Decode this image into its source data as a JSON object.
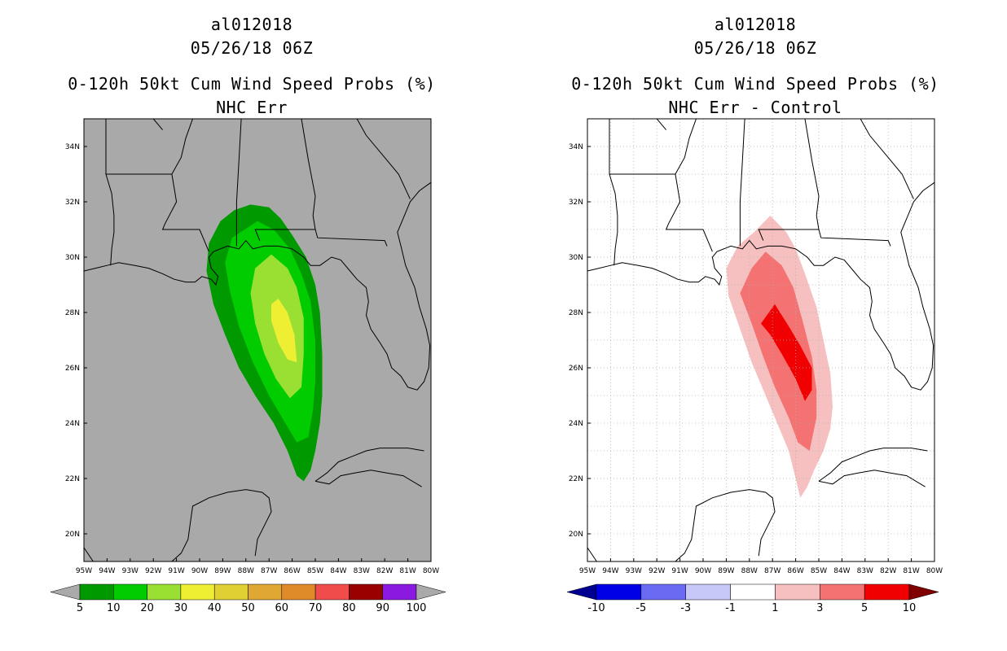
{
  "left_panel": {
    "storm_id": "al012018",
    "datetime": "05/26/18 06Z",
    "product": "0-120h 50kt Cum Wind Speed Probs (%)",
    "subtitle": "NHC Err",
    "background_color": "#a9a9a9",
    "colorbar": {
      "labels": [
        "5",
        "10",
        "20",
        "30",
        "40",
        "50",
        "60",
        "70",
        "80",
        "90",
        "100"
      ],
      "colors": [
        "#009900",
        "#00cc00",
        "#99e033",
        "#eeee33",
        "#e0d033",
        "#e0a833",
        "#e08b2a",
        "#f04c4c",
        "#990000",
        "#8a1ae0"
      ],
      "under_color": "#aaaaaa",
      "over_color": "#aaaaaa"
    }
  },
  "right_panel": {
    "storm_id": "al012018",
    "datetime": "05/26/18 06Z",
    "product": "0-120h 50kt Cum Wind Speed Probs (%)",
    "subtitle": "NHC Err - Control",
    "background_color": "#ffffff",
    "colorbar": {
      "labels": [
        "-10",
        "-5",
        "-3",
        "-1",
        "1",
        "3",
        "5",
        "10"
      ],
      "colors": [
        "#0000e6",
        "#6a6af2",
        "#c8c8f8",
        "#ffffff",
        "#f7c0c0",
        "#f47272",
        "#f00000"
      ],
      "under_color": "#000090",
      "over_color": "#800000"
    }
  },
  "axes": {
    "lat_labels": [
      "34N",
      "32N",
      "30N",
      "28N",
      "26N",
      "24N",
      "22N",
      "20N"
    ],
    "lon_labels": [
      "95W",
      "94W",
      "93W",
      "92W",
      "91W",
      "90W",
      "89W",
      "88W",
      "87W",
      "86W",
      "85W",
      "84W",
      "83W",
      "82W",
      "81W",
      "80W"
    ],
    "lat_range": [
      19,
      35
    ],
    "lon_range": [
      -95,
      -80
    ]
  },
  "left_contours": [
    {
      "level": "5-10",
      "color": "#009900",
      "points": [
        [
          -87.8,
          31.9
        ],
        [
          -87.0,
          31.8
        ],
        [
          -86.5,
          31.4
        ],
        [
          -86.0,
          30.8
        ],
        [
          -85.4,
          30.0
        ],
        [
          -85.0,
          29.0
        ],
        [
          -84.8,
          28.0
        ],
        [
          -84.7,
          26.5
        ],
        [
          -84.7,
          25.0
        ],
        [
          -84.8,
          24.0
        ],
        [
          -85.0,
          23.0
        ],
        [
          -85.2,
          22.3
        ],
        [
          -85.5,
          21.9
        ],
        [
          -85.8,
          22.1
        ],
        [
          -86.2,
          23.0
        ],
        [
          -86.8,
          24.0
        ],
        [
          -87.6,
          25.0
        ],
        [
          -88.3,
          26.0
        ],
        [
          -88.9,
          27.2
        ],
        [
          -89.4,
          28.3
        ],
        [
          -89.7,
          29.5
        ],
        [
          -89.6,
          30.5
        ],
        [
          -89.1,
          31.3
        ],
        [
          -88.5,
          31.7
        ]
      ]
    },
    {
      "level": "10-20",
      "color": "#00cc00",
      "points": [
        [
          -87.5,
          31.3
        ],
        [
          -86.8,
          31.0
        ],
        [
          -86.1,
          30.3
        ],
        [
          -85.6,
          29.4
        ],
        [
          -85.2,
          28.4
        ],
        [
          -85.0,
          27.0
        ],
        [
          -85.0,
          25.5
        ],
        [
          -85.1,
          24.5
        ],
        [
          -85.3,
          23.5
        ],
        [
          -85.8,
          23.3
        ],
        [
          -86.3,
          24.0
        ],
        [
          -87.0,
          25.0
        ],
        [
          -87.7,
          26.2
        ],
        [
          -88.3,
          27.5
        ],
        [
          -88.7,
          28.8
        ],
        [
          -88.9,
          29.8
        ],
        [
          -88.6,
          30.7
        ]
      ]
    },
    {
      "level": "20-30",
      "color": "#99e033",
      "points": [
        [
          -86.9,
          30.1
        ],
        [
          -86.2,
          29.6
        ],
        [
          -85.8,
          28.9
        ],
        [
          -85.5,
          27.8
        ],
        [
          -85.5,
          26.5
        ],
        [
          -85.6,
          25.3
        ],
        [
          -86.1,
          24.9
        ],
        [
          -86.7,
          25.6
        ],
        [
          -87.2,
          26.5
        ],
        [
          -87.6,
          27.6
        ],
        [
          -87.8,
          28.7
        ],
        [
          -87.6,
          29.6
        ]
      ]
    },
    {
      "level": "30-40",
      "color": "#eeee33",
      "points": [
        [
          -86.6,
          28.5
        ],
        [
          -86.2,
          28.0
        ],
        [
          -85.9,
          27.2
        ],
        [
          -85.8,
          26.2
        ],
        [
          -86.2,
          26.3
        ],
        [
          -86.6,
          26.9
        ],
        [
          -86.9,
          27.7
        ],
        [
          -86.9,
          28.3
        ]
      ]
    }
  ],
  "right_contours": [
    {
      "level": "1-3",
      "color": "#f7c0c0",
      "points": [
        [
          -87.1,
          31.5
        ],
        [
          -86.4,
          30.9
        ],
        [
          -86.0,
          30.3
        ],
        [
          -85.6,
          29.4
        ],
        [
          -85.1,
          28.2
        ],
        [
          -84.8,
          27.0
        ],
        [
          -84.5,
          25.8
        ],
        [
          -84.4,
          24.6
        ],
        [
          -84.5,
          23.8
        ],
        [
          -84.8,
          23.0
        ],
        [
          -85.2,
          22.3
        ],
        [
          -85.5,
          21.7
        ],
        [
          -85.8,
          21.3
        ],
        [
          -86.0,
          22.0
        ],
        [
          -86.3,
          23.0
        ],
        [
          -86.8,
          24.0
        ],
        [
          -87.3,
          25.0
        ],
        [
          -87.9,
          26.2
        ],
        [
          -88.4,
          27.4
        ],
        [
          -88.9,
          28.6
        ],
        [
          -89.0,
          29.6
        ],
        [
          -88.5,
          30.4
        ],
        [
          -87.8,
          30.9
        ]
      ]
    },
    {
      "level": "3-5",
      "color": "#f47272",
      "points": [
        [
          -87.3,
          30.2
        ],
        [
          -86.6,
          29.7
        ],
        [
          -86.1,
          28.9
        ],
        [
          -85.7,
          27.7
        ],
        [
          -85.3,
          26.4
        ],
        [
          -85.1,
          25.2
        ],
        [
          -85.1,
          24.2
        ],
        [
          -85.4,
          23.0
        ],
        [
          -85.9,
          23.3
        ],
        [
          -86.3,
          24.2
        ],
        [
          -86.9,
          25.3
        ],
        [
          -87.4,
          26.4
        ],
        [
          -87.9,
          27.6
        ],
        [
          -88.4,
          28.7
        ],
        [
          -87.9,
          29.6
        ]
      ]
    },
    {
      "level": "5-10",
      "color": "#f00000",
      "points": [
        [
          -86.9,
          28.3
        ],
        [
          -86.3,
          27.5
        ],
        [
          -85.8,
          26.8
        ],
        [
          -85.3,
          26.0
        ],
        [
          -85.3,
          25.2
        ],
        [
          -85.6,
          24.8
        ],
        [
          -86.0,
          25.6
        ],
        [
          -86.6,
          26.5
        ],
        [
          -87.1,
          27.2
        ],
        [
          -87.5,
          27.6
        ]
      ]
    }
  ]
}
